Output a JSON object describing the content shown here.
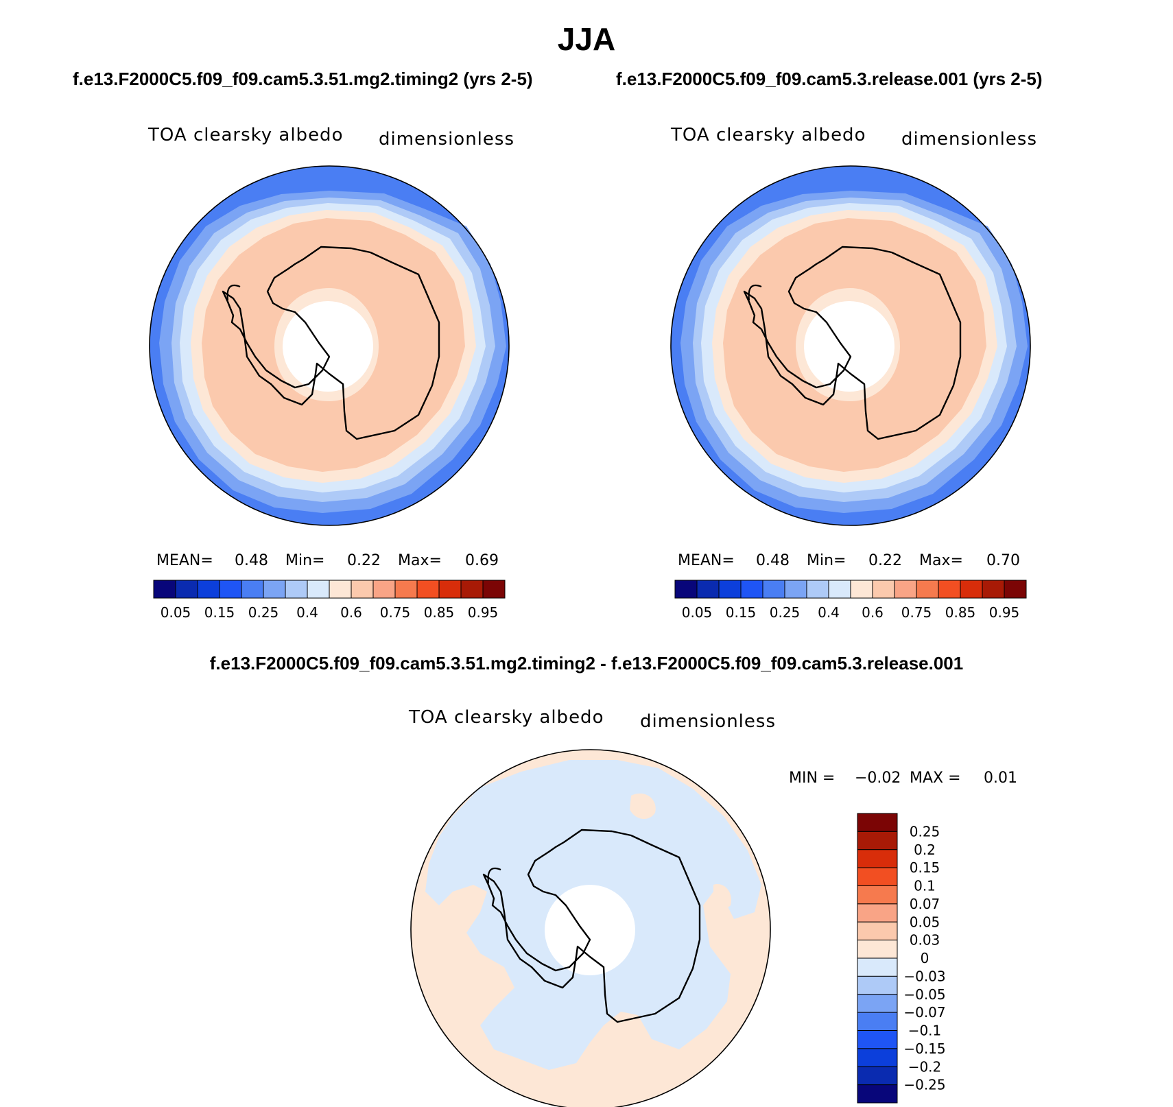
{
  "figure": {
    "season_title": "JJA",
    "diff_title": "f.e13.F2000C5.f09_f09.cam5.3.51.mg2.timing2 - f.e13.F2000C5.f09_f09.cam5.3.release.001"
  },
  "panels": [
    {
      "case_title": "f.e13.F2000C5.f09_f09.cam5.3.51.mg2.timing2 (yrs 2-5)",
      "variable": "TOA clearsky albedo",
      "units": "dimensionless",
      "mean_label": "MEAN=",
      "mean_value": "0.48",
      "min_label": "Min=",
      "min_value": "0.22",
      "max_label": "Max=",
      "max_value": "0.69"
    },
    {
      "case_title": "f.e13.F2000C5.f09_f09.cam5.3.release.001 (yrs 2-5)",
      "variable": "TOA clearsky albedo",
      "units": "dimensionless",
      "mean_label": "MEAN=",
      "mean_value": "0.48",
      "min_label": "Min=",
      "min_value": "0.22",
      "max_label": "Max=",
      "max_value": "0.70"
    }
  ],
  "diff_panel": {
    "variable": "TOA clearsky albedo",
    "units": "dimensionless",
    "min_label": "MIN =",
    "min_value": "−0.02",
    "max_label": "MAX =",
    "max_value": "0.01"
  },
  "colorbar_abs": {
    "colors": [
      "#08067a",
      "#0a2bb0",
      "#0c3fdb",
      "#1f55f5",
      "#4a7ef3",
      "#7ba4f4",
      "#aecaf7",
      "#d9e9fb",
      "#fde7d6",
      "#fbc9ad",
      "#f9a486",
      "#f67a4e",
      "#f24f22",
      "#d82d0a",
      "#a81a06",
      "#7b0505"
    ],
    "tick_labels": [
      "0.05",
      "0.15",
      "0.25",
      "0.4",
      "0.6",
      "0.75",
      "0.85",
      "0.95"
    ]
  },
  "colorbar_diff": {
    "colors": [
      "#7b0505",
      "#a81a06",
      "#d82d0a",
      "#f24f22",
      "#f67a4e",
      "#f9a486",
      "#fbc9ad",
      "#fde7d6",
      "#d9e9fb",
      "#aecaf7",
      "#7ba4f4",
      "#4a7ef3",
      "#1f55f5",
      "#0c3fdb",
      "#0a2bb0",
      "#08067a"
    ],
    "tick_labels": [
      "0.25",
      "0.2",
      "0.15",
      "0.1",
      "0.07",
      "0.05",
      "0.03",
      "0",
      "−0.03",
      "−0.05",
      "−0.07",
      "−0.1",
      "−0.15",
      "−0.2",
      "−0.25"
    ]
  }
}
